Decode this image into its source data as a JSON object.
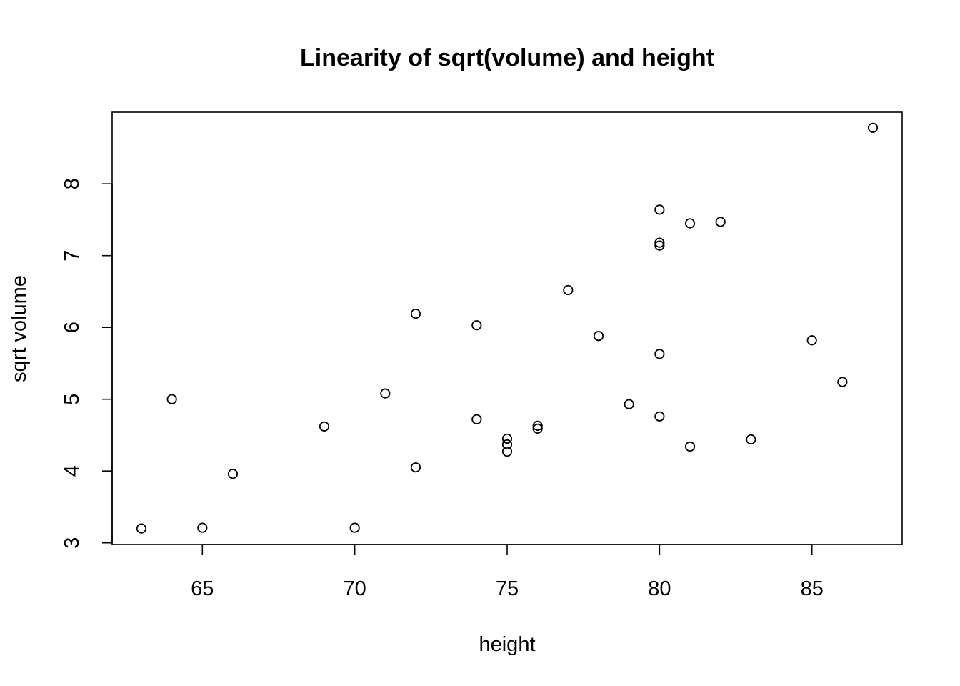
{
  "chart_data": {
    "type": "scatter",
    "title": "Linearity of sqrt(volume) and height",
    "xlabel": "height",
    "ylabel": "sqrt volume",
    "xlim": [
      62.04,
      87.96
    ],
    "ylim": [
      2.977,
      8.997
    ],
    "xticks": [
      65,
      70,
      75,
      80,
      85
    ],
    "yticks": [
      3,
      4,
      5,
      6,
      7,
      8
    ],
    "grid": false,
    "points": [
      {
        "x": 70,
        "y": 3.21
      },
      {
        "x": 65,
        "y": 3.21
      },
      {
        "x": 63,
        "y": 3.2
      },
      {
        "x": 72,
        "y": 4.05
      },
      {
        "x": 81,
        "y": 4.34
      },
      {
        "x": 83,
        "y": 4.44
      },
      {
        "x": 66,
        "y": 3.96
      },
      {
        "x": 75,
        "y": 4.27
      },
      {
        "x": 80,
        "y": 4.76
      },
      {
        "x": 75,
        "y": 4.37
      },
      {
        "x": 79,
        "y": 4.93
      },
      {
        "x": 76,
        "y": 4.59
      },
      {
        "x": 76,
        "y": 4.63
      },
      {
        "x": 69,
        "y": 4.62
      },
      {
        "x": 75,
        "y": 4.45
      },
      {
        "x": 74,
        "y": 4.72
      },
      {
        "x": 85,
        "y": 5.82
      },
      {
        "x": 86,
        "y": 5.24
      },
      {
        "x": 71,
        "y": 5.08
      },
      {
        "x": 64,
        "y": 5.0
      },
      {
        "x": 78,
        "y": 5.88
      },
      {
        "x": 80,
        "y": 5.63
      },
      {
        "x": 74,
        "y": 6.03
      },
      {
        "x": 72,
        "y": 6.19
      },
      {
        "x": 77,
        "y": 6.52
      },
      {
        "x": 81,
        "y": 7.45
      },
      {
        "x": 82,
        "y": 7.47
      },
      {
        "x": 80,
        "y": 7.14
      },
      {
        "x": 80,
        "y": 7.18
      },
      {
        "x": 80,
        "y": 7.64
      },
      {
        "x": 87,
        "y": 8.78
      }
    ]
  }
}
